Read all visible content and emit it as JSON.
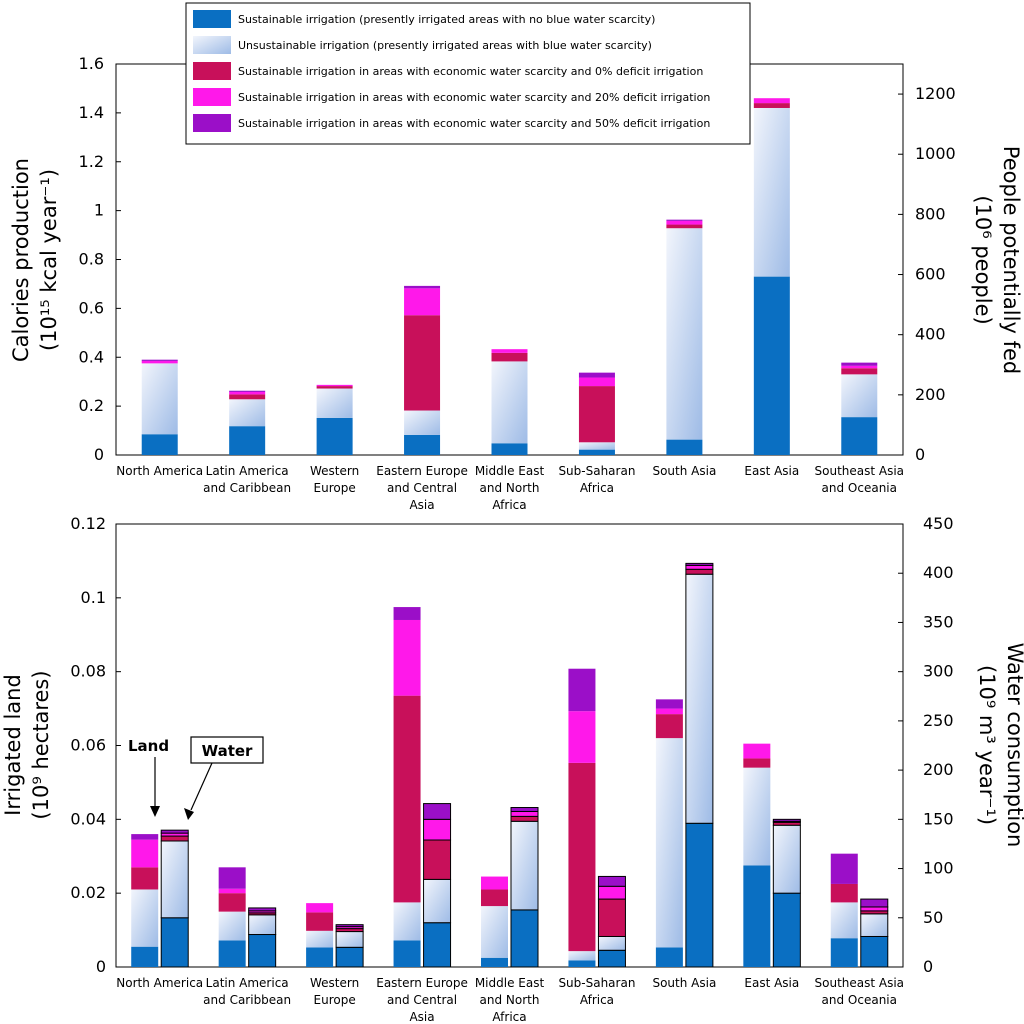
{
  "colors": {
    "sust": "#0a6fc2",
    "unsust_light": "#f2f5fc",
    "unsust_dark": "#9ebbe6",
    "def0": "#c8105a",
    "def20": "#ff18ea",
    "def50": "#9b0fc8"
  },
  "legend": [
    {
      "key": "sust",
      "label": "Sustainable irrigation (presently irrigated areas with no blue water scarcity)"
    },
    {
      "key": "unsust",
      "label": "Unsustainable irrigation (presently irrigated areas with blue water scarcity)"
    },
    {
      "key": "def0",
      "label": "Sustainable irrigation in areas with economic water scarcity and 0% deficit irrigation"
    },
    {
      "key": "def20",
      "label": "Sustainable irrigation in areas with economic water scarcity and 20% deficit irrigation"
    },
    {
      "key": "def50",
      "label": "Sustainable irrigation in areas with economic water scarcity and 50% deficit irrigation"
    }
  ],
  "annotations": {
    "land": "Land",
    "water": "Water"
  },
  "chart_data": [
    {
      "type": "bar",
      "stacked": true,
      "categories": [
        [
          "North America"
        ],
        [
          "Latin America",
          "and Caribbean"
        ],
        [
          "Western",
          "Europe"
        ],
        [
          "Eastern Europe",
          "and Central",
          "Asia"
        ],
        [
          "Middle East",
          "and North",
          "Africa"
        ],
        [
          "Sub-Saharan",
          "Africa"
        ],
        [
          "South Asia"
        ],
        [
          "East Asia"
        ],
        [
          "Southeast Asia",
          "and Oceania"
        ]
      ],
      "ylabel": [
        "Calories production",
        "(10¹⁵ kcal year⁻¹)"
      ],
      "ylim": [
        0,
        1.6
      ],
      "yticks": [
        0,
        0.2,
        0.4,
        0.6,
        0.8,
        1,
        1.2,
        1.4,
        1.6
      ],
      "ytick_labels": [
        "0",
        "0.2",
        "0.4",
        "0.6",
        "0.8",
        "1",
        "1.2",
        "1.4",
        "1.6"
      ],
      "y2label": [
        "People potentially fed",
        "(10⁶ people)"
      ],
      "y2lim": [
        0,
        1300
      ],
      "y2ticks": [
        0,
        200,
        400,
        600,
        800,
        1000,
        1200
      ],
      "series": [
        {
          "key": "sust",
          "values": [
            0.085,
            0.118,
            0.152,
            0.082,
            0.048,
            0.022,
            0.063,
            0.73,
            0.155
          ]
        },
        {
          "key": "unsust",
          "values": [
            0.29,
            0.11,
            0.12,
            0.1,
            0.335,
            0.03,
            0.865,
            0.69,
            0.175
          ]
        },
        {
          "key": "def0",
          "values": [
            0.0,
            0.02,
            0.01,
            0.39,
            0.035,
            0.23,
            0.015,
            0.02,
            0.025
          ]
        },
        {
          "key": "def20",
          "values": [
            0.01,
            0.01,
            0.005,
            0.11,
            0.015,
            0.035,
            0.015,
            0.02,
            0.01
          ]
        },
        {
          "key": "def50",
          "values": [
            0.005,
            0.005,
            0.0,
            0.01,
            0.0,
            0.02,
            0.005,
            0.0,
            0.013
          ]
        }
      ]
    },
    {
      "type": "bar",
      "stacked": true,
      "grouped_pairs": [
        "Land",
        "Water"
      ],
      "categories": [
        [
          "North America"
        ],
        [
          "Latin America",
          "and Caribbean"
        ],
        [
          "Western",
          "Europe"
        ],
        [
          "Eastern Europe",
          "and Central",
          "Asia"
        ],
        [
          "Middle East",
          "and North",
          "Africa"
        ],
        [
          "Sub-Saharan",
          "Africa"
        ],
        [
          "South Asia"
        ],
        [
          "East Asia"
        ],
        [
          "Southeast Asia",
          "and Oceania"
        ]
      ],
      "ylabel": [
        "Irrigated land",
        "(10⁹ hectares)"
      ],
      "ylim": [
        0,
        0.12
      ],
      "yticks": [
        0,
        0.02,
        0.04,
        0.06,
        0.08,
        0.1,
        0.12
      ],
      "ytick_labels": [
        "0",
        "0.02",
        "0.04",
        "0.06",
        "0.08",
        "0.1",
        "0.12"
      ],
      "y2label": [
        "Water consumption",
        "(10⁹ m³ year⁻¹)"
      ],
      "y2lim": [
        0,
        450
      ],
      "y2ticks": [
        0,
        50,
        100,
        150,
        200,
        250,
        300,
        350,
        400,
        450
      ],
      "land": [
        {
          "key": "sust",
          "values": [
            0.0055,
            0.0072,
            0.0053,
            0.0072,
            0.0025,
            0.0018,
            0.0053,
            0.0275,
            0.0078
          ]
        },
        {
          "key": "unsust",
          "values": [
            0.0155,
            0.0078,
            0.0045,
            0.0103,
            0.014,
            0.0025,
            0.0567,
            0.0265,
            0.0097
          ]
        },
        {
          "key": "def0",
          "values": [
            0.006,
            0.005,
            0.005,
            0.056,
            0.0045,
            0.051,
            0.0065,
            0.0025,
            0.005
          ]
        },
        {
          "key": "def20",
          "values": [
            0.0075,
            0.0012,
            0.0025,
            0.0205,
            0.0035,
            0.014,
            0.0015,
            0.004,
            0.0
          ]
        },
        {
          "key": "def50",
          "values": [
            0.0015,
            0.0058,
            0.0,
            0.0035,
            0.0,
            0.0115,
            0.0025,
            0.0,
            0.0082
          ]
        }
      ],
      "water": [
        {
          "key": "sust",
          "values": [
            50,
            33,
            20,
            45,
            58,
            17,
            146,
            75,
            31
          ]
        },
        {
          "key": "unsust",
          "values": [
            78,
            20,
            16,
            44,
            90,
            14,
            253,
            69,
            23
          ]
        },
        {
          "key": "def0",
          "values": [
            5,
            2,
            3,
            40,
            5,
            38,
            5,
            3,
            3
          ]
        },
        {
          "key": "def20",
          "values": [
            3,
            2,
            2,
            21,
            5,
            13,
            4,
            1,
            4
          ]
        },
        {
          "key": "def50",
          "values": [
            3,
            3,
            2,
            16,
            4,
            10,
            2,
            2,
            8
          ]
        }
      ]
    }
  ]
}
